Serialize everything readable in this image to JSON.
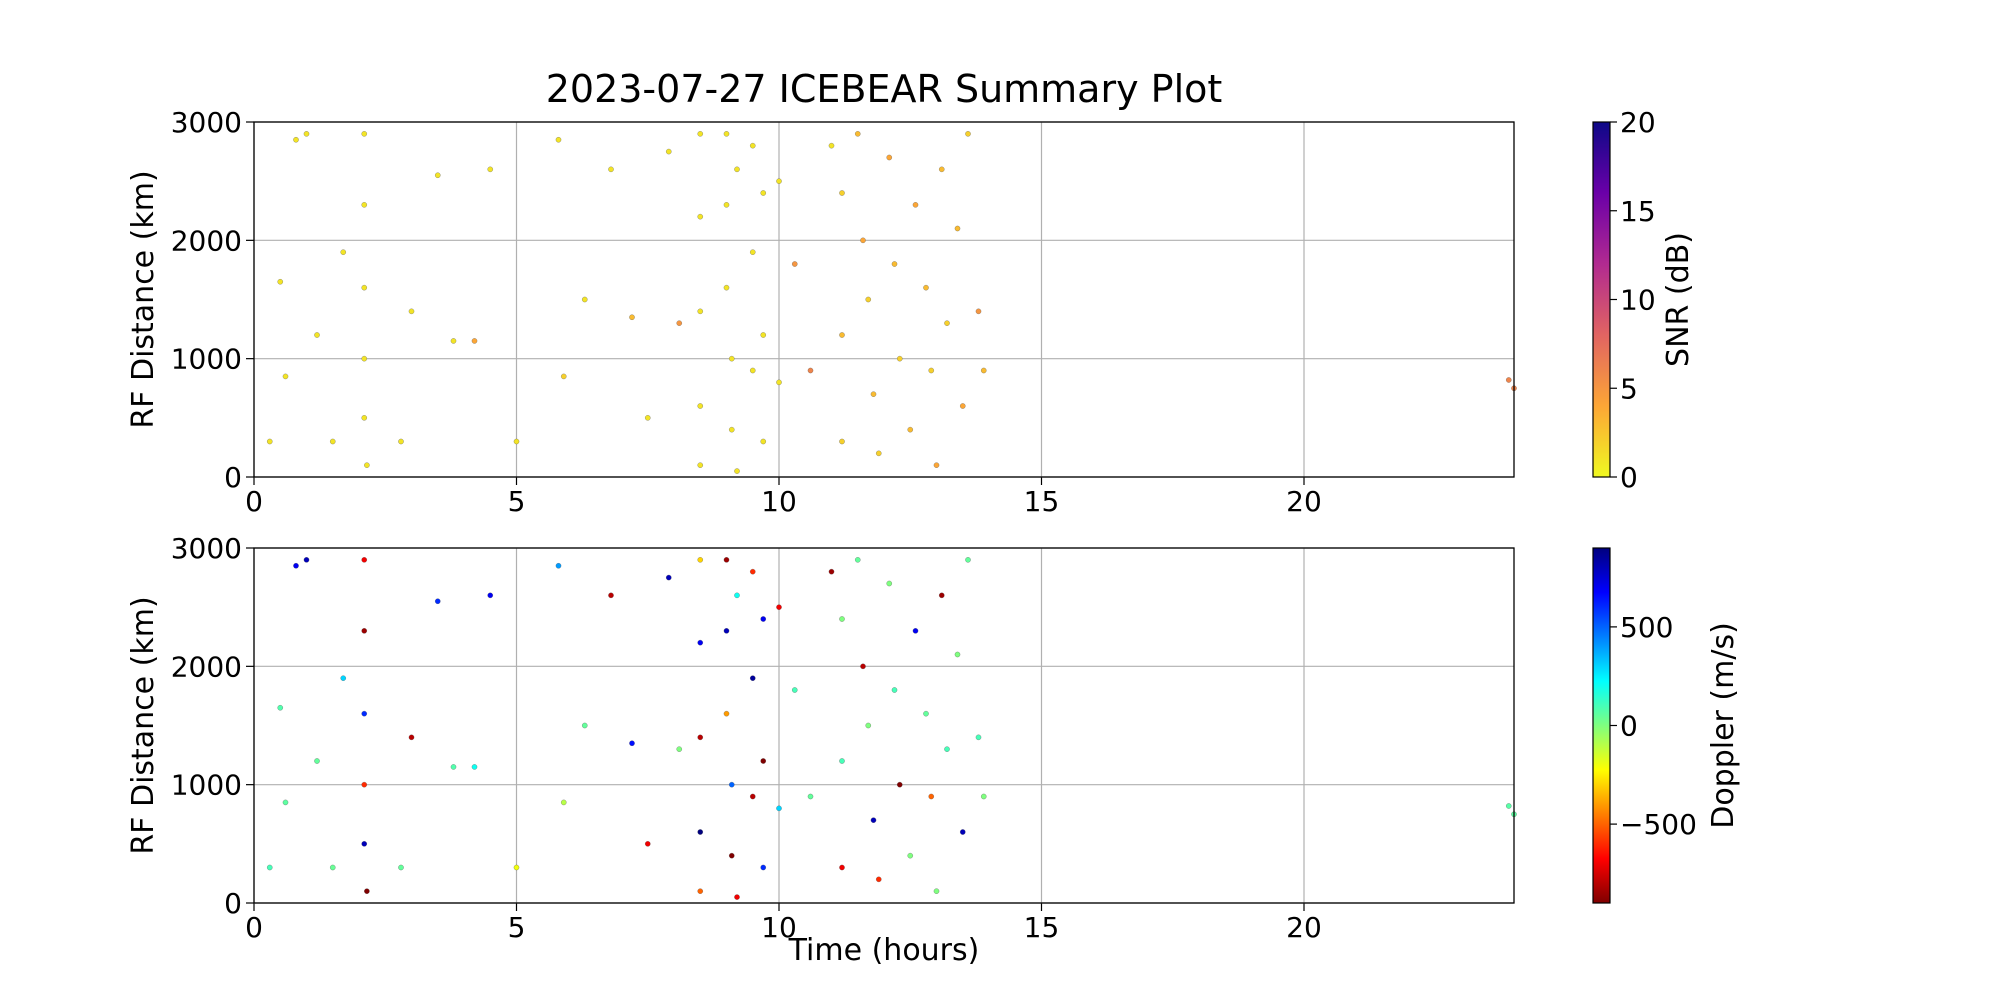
{
  "chart_data": [
    {
      "type": "scatter",
      "title": "2023-07-27 ICEBEAR Summary Plot",
      "ylabel": "RF Distance (km)",
      "xlim": [
        0,
        24
      ],
      "xticks": [
        0,
        5,
        10,
        15,
        20
      ],
      "ylim": [
        0,
        3000
      ],
      "yticks": [
        0,
        1000,
        2000,
        3000
      ],
      "grid": true,
      "x": [
        0.3,
        0.5,
        0.6,
        0.8,
        1.0,
        1.2,
        1.5,
        1.7,
        2.1,
        2.1,
        2.1,
        2.1,
        2.1,
        2.15,
        2.8,
        3.0,
        3.5,
        3.8,
        4.2,
        4.5,
        5.0,
        5.8,
        5.9,
        6.3,
        6.8,
        7.2,
        7.5,
        7.9,
        8.1,
        8.5,
        8.5,
        8.5,
        8.5,
        8.5,
        9.0,
        9.0,
        9.0,
        9.1,
        9.1,
        9.2,
        9.2,
        9.5,
        9.5,
        9.5,
        9.7,
        9.7,
        9.7,
        10.0,
        10.0,
        10.3,
        10.6,
        11.0,
        11.2,
        11.2,
        11.2,
        11.5,
        11.6,
        11.7,
        11.8,
        11.9,
        12.1,
        12.2,
        12.3,
        12.5,
        12.6,
        12.8,
        12.9,
        13.0,
        13.1,
        13.2,
        13.4,
        13.5,
        13.6,
        13.8,
        13.9,
        23.9,
        24.0
      ],
      "y": [
        300,
        1650,
        850,
        2850,
        2900,
        1200,
        300,
        1900,
        2900,
        2300,
        1600,
        1000,
        500,
        100,
        300,
        1400,
        2550,
        1150,
        1150,
        2600,
        300,
        2850,
        850,
        1500,
        2600,
        1350,
        500,
        2750,
        1300,
        2900,
        2200,
        1400,
        600,
        100,
        2900,
        2300,
        1600,
        1000,
        400,
        2600,
        50,
        2800,
        1900,
        900,
        2400,
        1200,
        300,
        2500,
        800,
        1800,
        900,
        2800,
        2400,
        1200,
        300,
        2900,
        2000,
        1500,
        700,
        200,
        2700,
        1800,
        1000,
        400,
        2300,
        1600,
        900,
        100,
        2600,
        1300,
        2100,
        600,
        2900,
        1400,
        900,
        820,
        750
      ],
      "c": [
        1,
        1,
        1,
        1,
        1,
        1,
        1,
        1,
        1,
        1,
        1,
        1,
        1,
        1,
        1,
        1,
        1,
        1,
        4,
        1,
        1,
        1,
        2,
        1,
        1,
        3,
        1,
        1,
        5,
        1,
        1,
        1,
        1,
        1,
        1,
        1,
        1,
        1,
        1,
        1,
        1,
        1,
        1,
        1,
        1,
        1,
        1,
        1,
        1,
        5,
        6,
        1,
        2,
        3,
        2,
        3,
        4,
        2,
        3,
        2,
        4,
        3,
        2,
        3,
        4,
        3,
        2,
        4,
        3,
        2,
        3,
        4,
        2,
        5,
        3,
        6,
        6
      ],
      "colorbar": {
        "label": "SNR (dB)",
        "lim": [
          0,
          20
        ],
        "ticks": [
          0,
          5,
          10,
          15,
          20
        ],
        "colors": [
          "#f0f921",
          "#fca636",
          "#e16462",
          "#b12a90",
          "#6a00a8",
          "#0d0887"
        ]
      }
    },
    {
      "type": "scatter",
      "ylabel": "RF Distance (km)",
      "xlabel": "Time (hours)",
      "xlim": [
        0,
        24
      ],
      "xticks": [
        0,
        5,
        10,
        15,
        20
      ],
      "ylim": [
        0,
        3000
      ],
      "yticks": [
        0,
        1000,
        2000,
        3000
      ],
      "grid": true,
      "x": [
        0.3,
        0.5,
        0.6,
        0.8,
        1.0,
        1.2,
        1.5,
        1.7,
        2.1,
        2.1,
        2.1,
        2.1,
        2.1,
        2.15,
        2.8,
        3.0,
        3.5,
        3.8,
        4.2,
        4.5,
        5.0,
        5.8,
        5.9,
        6.3,
        6.8,
        7.2,
        7.5,
        7.9,
        8.1,
        8.5,
        8.5,
        8.5,
        8.5,
        8.5,
        9.0,
        9.0,
        9.0,
        9.1,
        9.1,
        9.2,
        9.2,
        9.5,
        9.5,
        9.5,
        9.7,
        9.7,
        9.7,
        10.0,
        10.0,
        10.3,
        10.6,
        11.0,
        11.2,
        11.2,
        11.2,
        11.5,
        11.6,
        11.7,
        11.8,
        11.9,
        12.1,
        12.2,
        12.3,
        12.5,
        12.6,
        12.8,
        12.9,
        13.0,
        13.1,
        13.2,
        13.4,
        13.5,
        13.6,
        13.8,
        13.9,
        23.9,
        24.0
      ],
      "y": [
        300,
        1650,
        850,
        2850,
        2900,
        1200,
        300,
        1900,
        2900,
        2300,
        1600,
        1000,
        500,
        100,
        300,
        1400,
        2550,
        1150,
        1150,
        2600,
        300,
        2850,
        850,
        1500,
        2600,
        1350,
        500,
        2750,
        1300,
        2900,
        2200,
        1400,
        600,
        100,
        2900,
        2300,
        1600,
        1000,
        400,
        2600,
        50,
        2800,
        1900,
        900,
        2400,
        1200,
        300,
        2500,
        800,
        1800,
        900,
        2800,
        2400,
        1200,
        300,
        2900,
        2000,
        1500,
        700,
        200,
        2700,
        1800,
        1000,
        400,
        2300,
        1600,
        900,
        100,
        2600,
        1300,
        2100,
        600,
        2900,
        1400,
        900,
        820,
        750
      ],
      "c": [
        100,
        80,
        60,
        700,
        800,
        50,
        40,
        300,
        -700,
        -850,
        600,
        -600,
        800,
        -900,
        50,
        -800,
        600,
        80,
        200,
        700,
        -200,
        400,
        -100,
        50,
        -800,
        650,
        -700,
        800,
        0,
        -300,
        700,
        -800,
        900,
        -500,
        -850,
        800,
        -400,
        500,
        -900,
        200,
        -700,
        -600,
        850,
        -800,
        700,
        -900,
        600,
        -700,
        300,
        100,
        50,
        -850,
        0,
        100,
        -700,
        50,
        -800,
        0,
        800,
        -600,
        0,
        100,
        -900,
        0,
        700,
        50,
        -500,
        0,
        -850,
        100,
        0,
        800,
        50,
        100,
        0,
        70,
        60
      ],
      "colorbar": {
        "label": "Doppler (m/s)",
        "lim": [
          -900,
          900
        ],
        "ticks": [
          {
            "value": -500,
            "label": "−500"
          },
          0,
          500
        ],
        "colors": [
          "#7f0000",
          "#ff0000",
          "#ff7f00",
          "#ffff00",
          "#7fff7f",
          "#00ffff",
          "#007fff",
          "#0000ff",
          "#00007f"
        ]
      }
    }
  ]
}
